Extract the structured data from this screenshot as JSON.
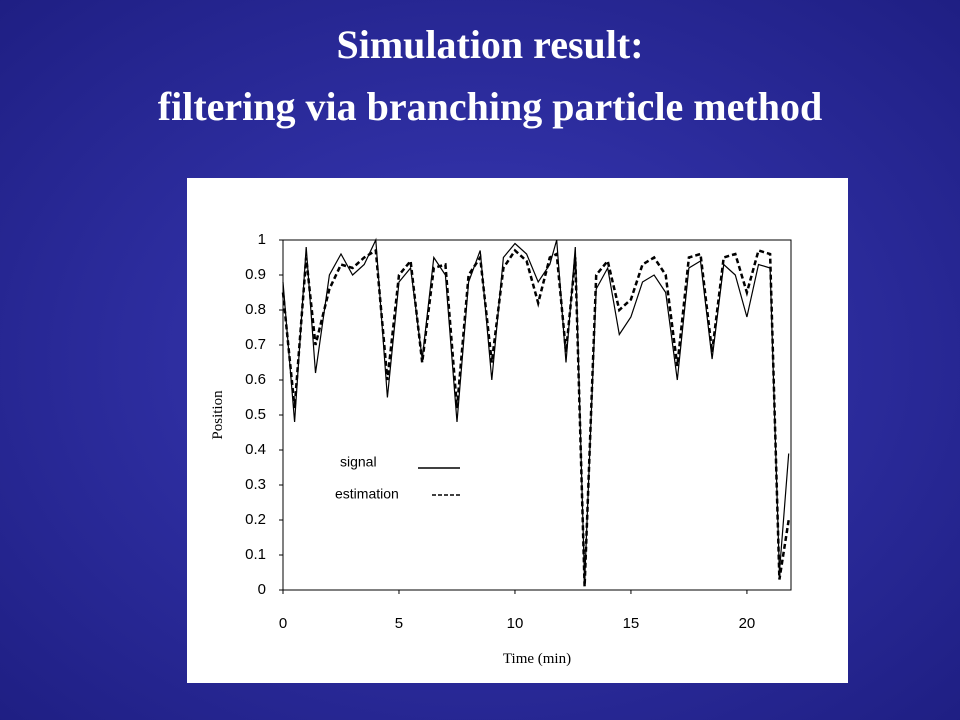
{
  "chart_data": {
    "type": "line",
    "title": "Simulation result:",
    "subtitle": "filtering via branching particle method",
    "x_label": "Time (min)",
    "y_label": "Position",
    "xlim": [
      0,
      21.9
    ],
    "xticks": [
      0,
      5,
      10,
      15,
      20
    ],
    "ylim": [
      0,
      1
    ],
    "yticks": [
      0,
      0.1,
      0.2,
      0.3,
      0.4,
      0.5,
      0.6,
      0.7,
      0.8,
      0.9,
      1
    ],
    "x": [
      0,
      0.5,
      1.0,
      1.4,
      2.0,
      2.5,
      3.0,
      3.5,
      4.0,
      4.5,
      5.0,
      5.5,
      6.0,
      6.5,
      7.0,
      7.5,
      8.0,
      8.5,
      9.0,
      9.5,
      10.0,
      10.5,
      11.0,
      11.5,
      11.8,
      12.2,
      12.6,
      13.0,
      13.5,
      14.0,
      14.5,
      15.0,
      15.5,
      16.0,
      16.5,
      17.0,
      17.5,
      18.0,
      18.5,
      19.0,
      19.5,
      20.0,
      20.5,
      21.0,
      21.4,
      21.8
    ],
    "series": [
      {
        "name": "signal",
        "color": "#000000",
        "dash": false,
        "values": [
          0.88,
          0.48,
          0.98,
          0.62,
          0.9,
          0.96,
          0.9,
          0.93,
          1.0,
          0.55,
          0.88,
          0.92,
          0.66,
          0.95,
          0.9,
          0.48,
          0.88,
          0.97,
          0.6,
          0.95,
          0.99,
          0.96,
          0.88,
          0.93,
          1.0,
          0.65,
          0.98,
          0.02,
          0.86,
          0.92,
          0.73,
          0.78,
          0.88,
          0.9,
          0.85,
          0.6,
          0.92,
          0.94,
          0.66,
          0.93,
          0.9,
          0.78,
          0.93,
          0.92,
          0.05,
          0.39
        ]
      },
      {
        "name": "estimation",
        "color": "#000000",
        "dash": true,
        "values": [
          0.85,
          0.52,
          0.95,
          0.7,
          0.86,
          0.93,
          0.92,
          0.95,
          0.97,
          0.6,
          0.9,
          0.94,
          0.65,
          0.92,
          0.93,
          0.52,
          0.9,
          0.95,
          0.65,
          0.92,
          0.97,
          0.94,
          0.82,
          0.95,
          0.96,
          0.68,
          0.95,
          0.01,
          0.9,
          0.94,
          0.8,
          0.83,
          0.93,
          0.95,
          0.9,
          0.64,
          0.95,
          0.96,
          0.68,
          0.95,
          0.96,
          0.85,
          0.97,
          0.96,
          0.03,
          0.2
        ]
      }
    ],
    "legend": "inside-lower-left"
  }
}
